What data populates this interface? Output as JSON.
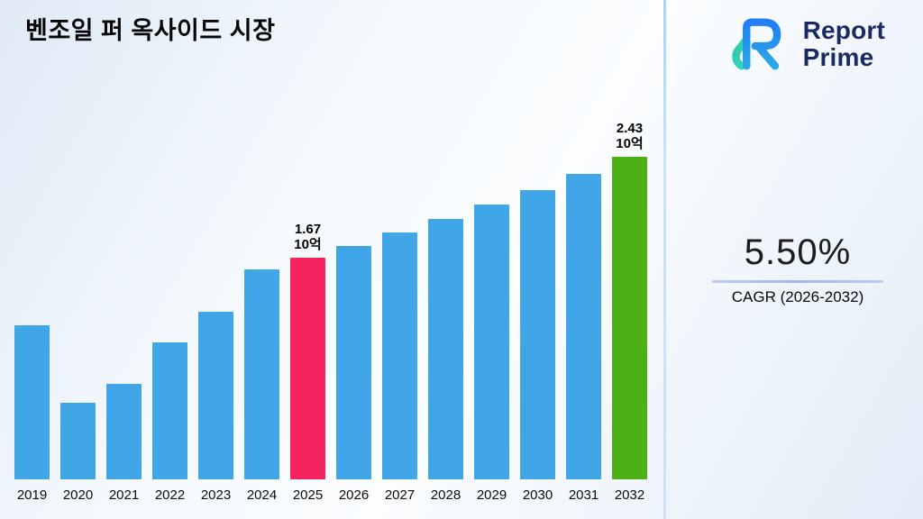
{
  "title": "벤조일 퍼 옥사이드 시장",
  "logo": {
    "line1": "Report",
    "line2": "Prime"
  },
  "cagr": {
    "value": "5.50%",
    "label": "CAGR (2026-2032)"
  },
  "chart_data": {
    "type": "bar",
    "title": "벤조일 퍼 옥사이드 시장",
    "categories": [
      "2019",
      "2020",
      "2021",
      "2022",
      "2023",
      "2024",
      "2025",
      "2026",
      "2027",
      "2028",
      "2029",
      "2030",
      "2031",
      "2032"
    ],
    "values": [
      1.16,
      0.58,
      0.72,
      1.03,
      1.26,
      1.58,
      1.67,
      1.76,
      1.86,
      1.96,
      2.07,
      2.18,
      2.3,
      2.43
    ],
    "unit": "10억",
    "xlabel": "",
    "ylabel": "",
    "ylim": [
      0,
      2.6
    ],
    "grid": false,
    "legend": "none",
    "annotations": [
      {
        "year": "2025",
        "value_label": "1.67",
        "unit_label": "10억"
      },
      {
        "year": "2032",
        "value_label": "2.43",
        "unit_label": "10억"
      }
    ],
    "colors": {
      "bar_default": "#41a6e8",
      "highlight_2025": "#f5245f",
      "highlight_2032": "#4db015"
    }
  }
}
